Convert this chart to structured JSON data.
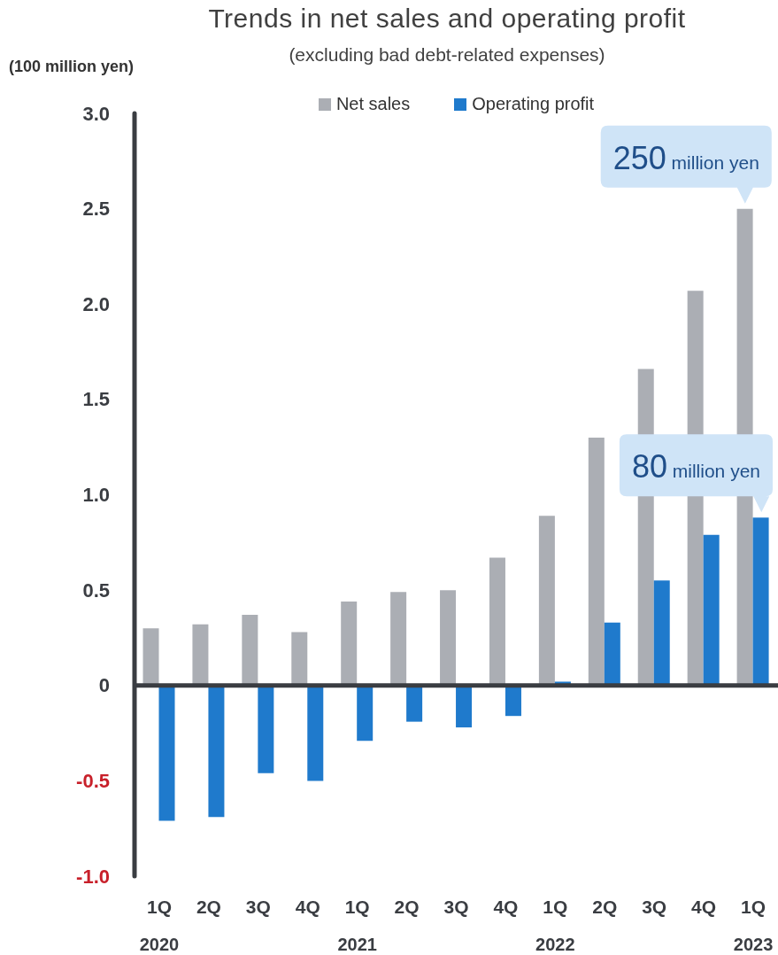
{
  "chart_data": {
    "type": "bar",
    "title": "Trends in net sales and operating profit",
    "subtitle": "(excluding bad debt-related expenses)",
    "ylabel": "(100 million yen)",
    "categories": [
      "1Q\n2020",
      "2Q",
      "3Q",
      "4Q",
      "1Q\n2021",
      "2Q",
      "3Q",
      "4Q",
      "1Q\n2022",
      "2Q",
      "3Q",
      "4Q",
      "1Q\n2023"
    ],
    "series": [
      {
        "name": "Net sales",
        "color": "#abaeb4",
        "values": [
          0.3,
          0.32,
          0.37,
          0.28,
          0.44,
          0.49,
          0.5,
          0.67,
          0.89,
          1.3,
          1.66,
          2.07,
          2.5
        ]
      },
      {
        "name": "Operating profit",
        "color": "#1f7acc",
        "values": [
          -0.71,
          -0.69,
          -0.46,
          -0.5,
          -0.29,
          -0.19,
          -0.22,
          -0.16,
          0.02,
          0.33,
          0.55,
          0.79,
          0.88
        ]
      }
    ],
    "ylim": [
      -1,
      3
    ],
    "yticks": [
      {
        "value": 3,
        "label": "3.0"
      },
      2.5,
      {
        "value": 2,
        "label": "2.0"
      },
      1.5,
      {
        "value": 1,
        "label": "1.0"
      },
      0.5,
      0,
      -0.5,
      {
        "value": -1,
        "label": "-1.0"
      }
    ],
    "legend": "top",
    "annotations": [
      {
        "text": "250 million yen",
        "x": "1Q\n2023",
        "y": 2.5
      },
      {
        "text": "80 million yen",
        "x": "1Q\n2023",
        "y": 0.88
      }
    ]
  }
}
